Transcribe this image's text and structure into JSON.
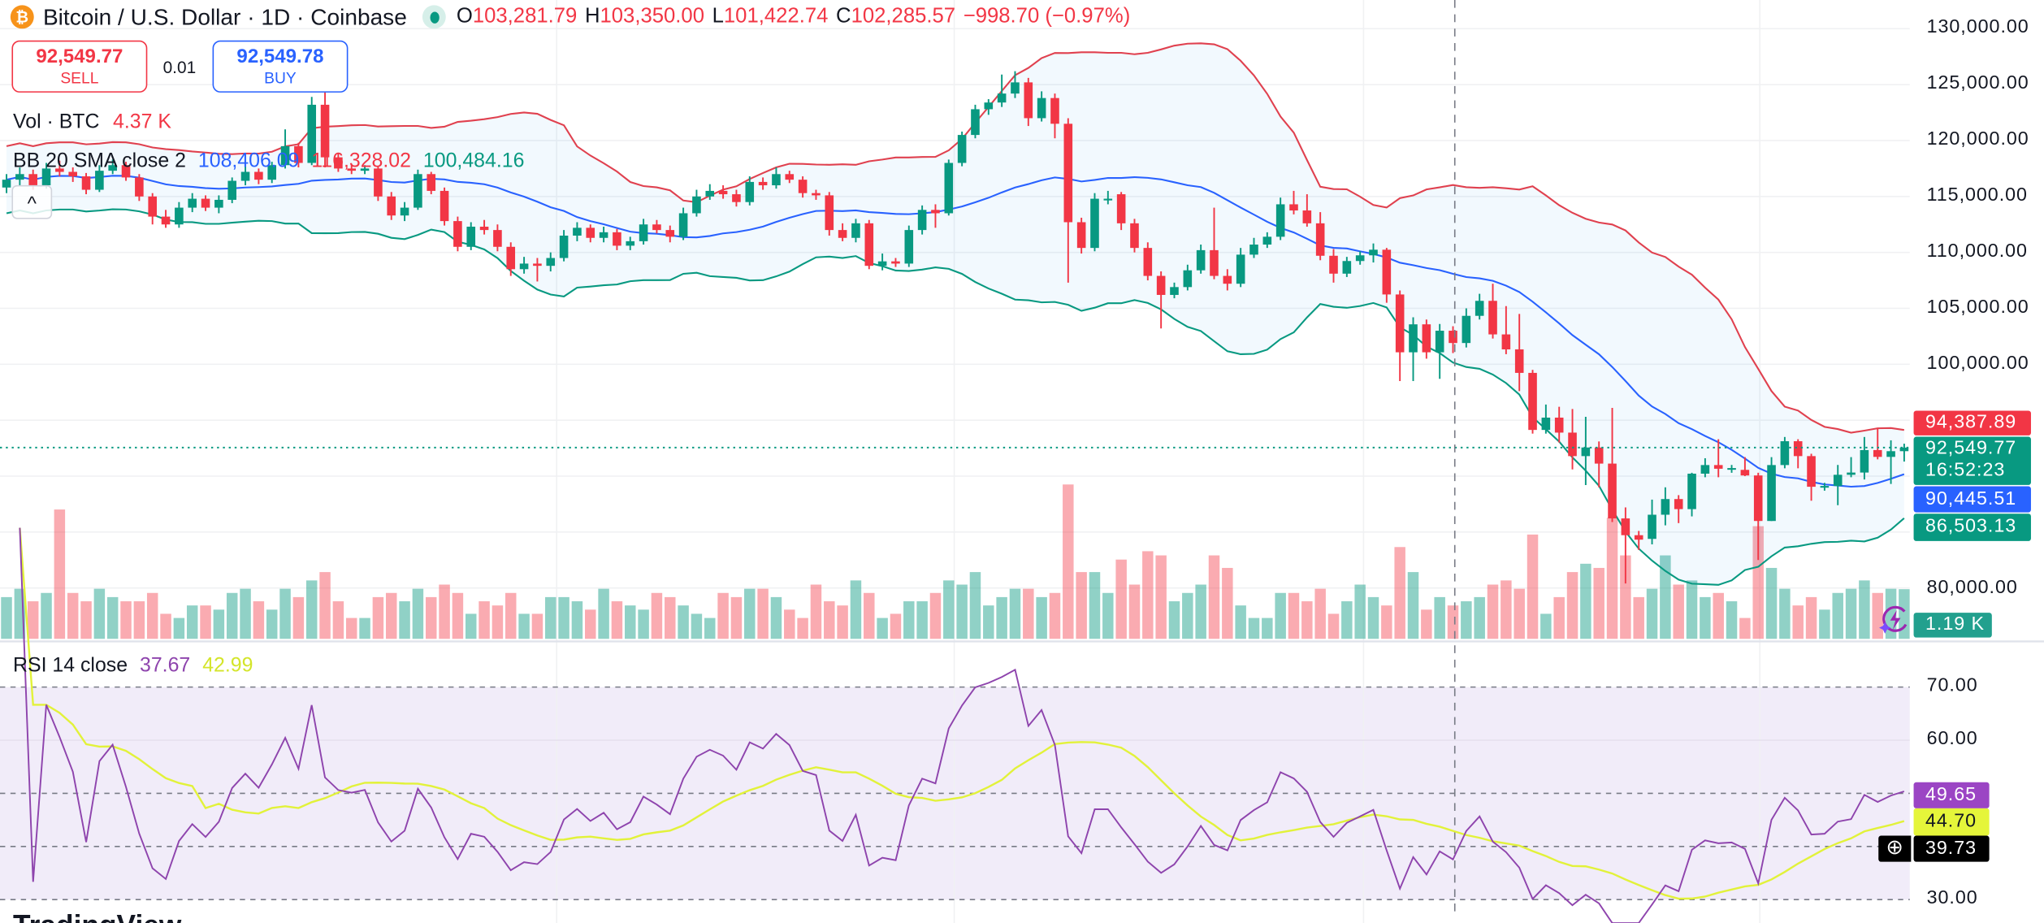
{
  "header": {
    "symbol_icon": "bitcoin-icon",
    "title": "Bitcoin / U.S. Dollar · 1D · Coinbase",
    "market_status_icon": "market-open-dot-icon",
    "o_label": "O",
    "o": "103,281.79",
    "h_label": "H",
    "h": "103,350.00",
    "l_label": "L",
    "l": "101,422.74",
    "c_label": "C",
    "c": "102,285.57",
    "change": "−998.70 (−0.97%)"
  },
  "trade": {
    "sell_price": "92,549.77",
    "sell_label": "SELL",
    "spread": "0.01",
    "buy_price": "92,549.78",
    "buy_label": "BUY"
  },
  "legends": {
    "vol_label": "Vol · BTC",
    "vol_value": "4.37 K",
    "bb_label": "BB 20 SMA close 2",
    "bb_mid": "108,406.09",
    "bb_upper": "116,328.02",
    "bb_lower": "100,484.16",
    "collapse_icon": "chevron-up-icon",
    "rsi_label": "RSI 14 close",
    "rsi_value": "37.67",
    "rsi_ma_value": "42.99"
  },
  "price_axis": {
    "ticks": [
      "130,000.00",
      "125,000.00",
      "120,000.00",
      "115,000.00",
      "110,000.00",
      "105,000.00",
      "100,000.00",
      "80,000.00"
    ],
    "bb_upper_tag": "94,387.89",
    "last_price_tag": "92,549.77",
    "countdown": "16:52:23",
    "bb_mid_tag": "90,445.51",
    "bb_lower_tag": "86,503.13",
    "volume_tag": "1.19 K"
  },
  "rsi_axis": {
    "ticks": [
      "70.00",
      "60.00",
      "30.00"
    ],
    "rsi_tag": "49.65",
    "rsi_ma_tag": "44.70",
    "crosshair_tag": "39.73",
    "add_icon": "plus-circle-icon"
  },
  "logo": "TradingView",
  "colors": {
    "up": "#089981",
    "down": "#f23645",
    "bb_upper": "#e0414f",
    "bb_mid": "#2962ff",
    "bb_lower": "#089981",
    "rsi": "#8e44ad",
    "rsi_ma": "#e2f23a"
  },
  "chart_data": {
    "type": "candlestick",
    "title": "Bitcoin / U.S. Dollar · 1D · Coinbase",
    "ylim": [
      78000,
      131000
    ],
    "grid": true,
    "fields": [
      "open",
      "high",
      "low",
      "close"
    ],
    "candles": [
      [
        115800,
        117000,
        115300,
        116500
      ],
      [
        116500,
        117600,
        116000,
        117000
      ],
      [
        117000,
        117400,
        115600,
        116000
      ],
      [
        116000,
        118000,
        115700,
        117500
      ],
      [
        117500,
        118200,
        116800,
        117200
      ],
      [
        117200,
        117600,
        116300,
        116800
      ],
      [
        116800,
        117100,
        115200,
        115600
      ],
      [
        115600,
        117800,
        115400,
        117300
      ],
      [
        117300,
        118300,
        117000,
        117800
      ],
      [
        117800,
        118100,
        116400,
        116700
      ],
      [
        116700,
        117000,
        114600,
        115000
      ],
      [
        115000,
        115300,
        112500,
        113200
      ],
      [
        113200,
        113800,
        112200,
        112500
      ],
      [
        112500,
        114500,
        112200,
        114000
      ],
      [
        114000,
        115300,
        113600,
        114800
      ],
      [
        114800,
        115100,
        113700,
        114000
      ],
      [
        114000,
        115100,
        113500,
        114700
      ],
      [
        114700,
        116700,
        114400,
        116400
      ],
      [
        116400,
        117700,
        116000,
        117200
      ],
      [
        117200,
        117500,
        116100,
        116500
      ],
      [
        116500,
        118100,
        116200,
        117800
      ],
      [
        117800,
        121000,
        117500,
        119500
      ],
      [
        119500,
        119800,
        117600,
        118000
      ],
      [
        118000,
        123900,
        117800,
        123200
      ],
      [
        123200,
        124300,
        117600,
        118500
      ],
      [
        118500,
        118900,
        117200,
        117500
      ],
      [
        117500,
        117800,
        117000,
        117300
      ],
      [
        117300,
        117800,
        117000,
        117500
      ],
      [
        117500,
        117700,
        114600,
        115000
      ],
      [
        115000,
        115400,
        112900,
        113300
      ],
      [
        113300,
        114500,
        112800,
        114000
      ],
      [
        114000,
        117400,
        113800,
        117000
      ],
      [
        117000,
        117200,
        115200,
        115500
      ],
      [
        115500,
        115800,
        112400,
        112800
      ],
      [
        112800,
        113200,
        110100,
        110500
      ],
      [
        110500,
        112700,
        110200,
        112300
      ],
      [
        112300,
        112900,
        111600,
        112000
      ],
      [
        112000,
        112500,
        110100,
        110500
      ],
      [
        110500,
        110900,
        107900,
        108500
      ],
      [
        108500,
        109600,
        108100,
        109000
      ],
      [
        109000,
        109500,
        107400,
        108800
      ],
      [
        108800,
        110000,
        108300,
        109500
      ],
      [
        109500,
        112000,
        109200,
        111500
      ],
      [
        111500,
        112700,
        111000,
        112200
      ],
      [
        112200,
        112500,
        110900,
        111300
      ],
      [
        111300,
        112300,
        110900,
        111800
      ],
      [
        111800,
        112100,
        110200,
        110600
      ],
      [
        110600,
        111400,
        110200,
        111000
      ],
      [
        111000,
        113000,
        110700,
        112500
      ],
      [
        112500,
        112900,
        111700,
        112000
      ],
      [
        112000,
        112400,
        110900,
        111400
      ],
      [
        111400,
        114000,
        111100,
        113500
      ],
      [
        113500,
        115600,
        113200,
        115000
      ],
      [
        115000,
        116100,
        114700,
        115500
      ],
      [
        115500,
        116000,
        114800,
        115200
      ],
      [
        115200,
        115600,
        114100,
        114500
      ],
      [
        114500,
        116800,
        114200,
        116300
      ],
      [
        116300,
        116700,
        115600,
        116000
      ],
      [
        116000,
        117600,
        115700,
        117000
      ],
      [
        117000,
        117300,
        116200,
        116500
      ],
      [
        116500,
        116800,
        114900,
        115300
      ],
      [
        115300,
        115600,
        114700,
        115100
      ],
      [
        115100,
        115400,
        111500,
        112000
      ],
      [
        112000,
        112600,
        111000,
        111300
      ],
      [
        111300,
        113000,
        110900,
        112600
      ],
      [
        112600,
        112900,
        108500,
        108800
      ],
      [
        108800,
        109900,
        108400,
        109200
      ],
      [
        109200,
        109500,
        108700,
        109000
      ],
      [
        109000,
        112400,
        108700,
        112000
      ],
      [
        112000,
        114200,
        111600,
        113800
      ],
      [
        113800,
        114300,
        112200,
        113500
      ],
      [
        113500,
        118300,
        113300,
        118000
      ],
      [
        118000,
        120800,
        117700,
        120500
      ],
      [
        120500,
        123200,
        120200,
        122800
      ],
      [
        122800,
        123700,
        122300,
        123400
      ],
      [
        123400,
        125900,
        123000,
        124200
      ],
      [
        124200,
        126200,
        123800,
        125200
      ],
      [
        125200,
        125600,
        121300,
        122000
      ],
      [
        122000,
        124400,
        121700,
        123800
      ],
      [
        123800,
        124200,
        120200,
        121500
      ],
      [
        121500,
        122000,
        107300,
        112700
      ],
      [
        112700,
        113100,
        109900,
        110400
      ],
      [
        110400,
        115300,
        110100,
        114800
      ],
      [
        114800,
        115500,
        114300,
        114800
      ],
      [
        115200,
        115400,
        112000,
        112600
      ],
      [
        112600,
        113000,
        110000,
        110400
      ],
      [
        110400,
        110900,
        107500,
        107900
      ],
      [
        107900,
        108300,
        103200,
        106200
      ],
      [
        106200,
        107300,
        105900,
        106900
      ],
      [
        106900,
        108900,
        106600,
        108400
      ],
      [
        108400,
        110700,
        108100,
        110200
      ],
      [
        110200,
        114000,
        107600,
        107900
      ],
      [
        107900,
        108500,
        106600,
        107200
      ],
      [
        107200,
        110400,
        106900,
        109800
      ],
      [
        109800,
        111300,
        109500,
        110700
      ],
      [
        110700,
        111800,
        110400,
        111400
      ],
      [
        111400,
        114900,
        111100,
        114300
      ],
      [
        114300,
        115500,
        113400,
        113750
      ],
      [
        113750,
        115200,
        112300,
        112600
      ],
      [
        112600,
        113600,
        109300,
        109700
      ],
      [
        109700,
        110300,
        107300,
        108100
      ],
      [
        108100,
        109600,
        107800,
        109230
      ],
      [
        109230,
        110100,
        108900,
        109740
      ],
      [
        109740,
        110800,
        109100,
        110240
      ],
      [
        110240,
        110400,
        105500,
        106240
      ],
      [
        106240,
        106600,
        98500,
        101070
      ],
      [
        101070,
        104200,
        98500,
        103570
      ],
      [
        103570,
        104000,
        100500,
        101070
      ],
      [
        101070,
        103600,
        98700,
        103000
      ],
      [
        103000,
        103400,
        101000,
        101900
      ],
      [
        101900,
        105000,
        101500,
        104330
      ],
      [
        104330,
        106300,
        104000,
        105670
      ],
      [
        105670,
        107200,
        102300,
        102670
      ],
      [
        102670,
        105200,
        100900,
        101330
      ],
      [
        101330,
        104500,
        97600,
        99230
      ],
      [
        99230,
        99500,
        93800,
        94130
      ],
      [
        94130,
        96400,
        93800,
        95230
      ],
      [
        95230,
        96200,
        93000,
        93890
      ],
      [
        93890,
        96000,
        90600,
        91790
      ],
      [
        91790,
        95300,
        89200,
        92560
      ],
      [
        92560,
        93100,
        89000,
        91120
      ],
      [
        91120,
        96100,
        85900,
        86220
      ],
      [
        86220,
        87200,
        80400,
        84720
      ],
      [
        84720,
        85100,
        83400,
        84320
      ],
      [
        84390,
        87900,
        83900,
        86550
      ],
      [
        86550,
        89000,
        85600,
        87950
      ],
      [
        87950,
        88300,
        85800,
        87050
      ],
      [
        87050,
        90300,
        86400,
        90220
      ],
      [
        90220,
        91600,
        89900,
        90990
      ],
      [
        90990,
        93300,
        89900,
        90660
      ],
      [
        90720,
        91000,
        90300,
        90720
      ],
      [
        90560,
        91700,
        90000,
        90060
      ],
      [
        90060,
        90300,
        82500,
        85990
      ],
      [
        85990,
        91700,
        85990,
        90990
      ],
      [
        90990,
        93500,
        90700,
        93120
      ],
      [
        93120,
        93300,
        90700,
        91790
      ],
      [
        91790,
        92000,
        87800,
        89050
      ],
      [
        89050,
        89400,
        88700,
        89120
      ],
      [
        89120,
        91000,
        87400,
        90120
      ],
      [
        90120,
        91700,
        89900,
        90320
      ],
      [
        90320,
        93500,
        89700,
        92330
      ],
      [
        92330,
        94300,
        91500,
        91720
      ],
      [
        91720,
        93200,
        89300,
        92230
      ],
      [
        92230,
        92900,
        91300,
        92550
      ]
    ],
    "volume_unit": "K BTC",
    "volume": [
      1.0,
      1.2,
      0.9,
      1.1,
      3.1,
      1.1,
      0.9,
      1.2,
      1.0,
      0.9,
      0.9,
      1.1,
      0.6,
      0.5,
      0.8,
      0.8,
      0.7,
      1.1,
      1.2,
      0.9,
      0.7,
      1.2,
      1.0,
      1.4,
      1.6,
      0.9,
      0.5,
      0.5,
      1.0,
      1.1,
      0.9,
      1.2,
      1.0,
      1.3,
      1.1,
      0.6,
      0.9,
      0.8,
      1.1,
      0.6,
      0.6,
      1.0,
      1.0,
      0.9,
      0.7,
      1.2,
      0.9,
      0.8,
      0.7,
      1.1,
      1.0,
      0.8,
      0.6,
      0.5,
      1.1,
      1.0,
      1.2,
      1.2,
      1.0,
      0.7,
      0.5,
      1.3,
      0.9,
      0.8,
      1.4,
      1.1,
      0.5,
      0.6,
      0.9,
      0.9,
      1.1,
      1.4,
      1.3,
      1.6,
      0.8,
      1.0,
      1.2,
      1.2,
      1.0,
      1.1,
      3.7,
      1.6,
      1.6,
      1.1,
      1.9,
      1.3,
      2.1,
      2.0,
      0.9,
      1.1,
      1.3,
      2.0,
      1.7,
      0.8,
      0.5,
      0.5,
      1.1,
      1.1,
      0.9,
      1.2,
      0.6,
      0.9,
      1.3,
      1.0,
      0.8,
      2.2,
      1.6,
      0.7,
      1.0,
      0.8,
      0.9,
      1.0,
      1.3,
      1.4,
      1.2,
      2.5,
      0.6,
      1.0,
      1.6,
      1.8,
      1.7,
      2.9,
      2.0,
      1.0,
      1.2,
      2.0,
      1.3,
      1.4,
      1.0,
      1.1,
      0.9,
      0.5,
      2.7,
      1.7,
      1.2,
      0.8,
      1.0,
      0.7,
      1.1,
      1.2,
      1.4,
      1.1,
      1.2,
      1.19
    ],
    "indicators": {
      "bollinger": {
        "length": 20,
        "source": "close",
        "stddev": 2
      },
      "rsi": {
        "length": 14,
        "source": "close",
        "ma_length": 14
      },
      "rsi_levels": [
        70,
        50,
        40,
        30
      ],
      "rsi_ylim": [
        28,
        75
      ]
    },
    "last_price": 92549.77
  }
}
